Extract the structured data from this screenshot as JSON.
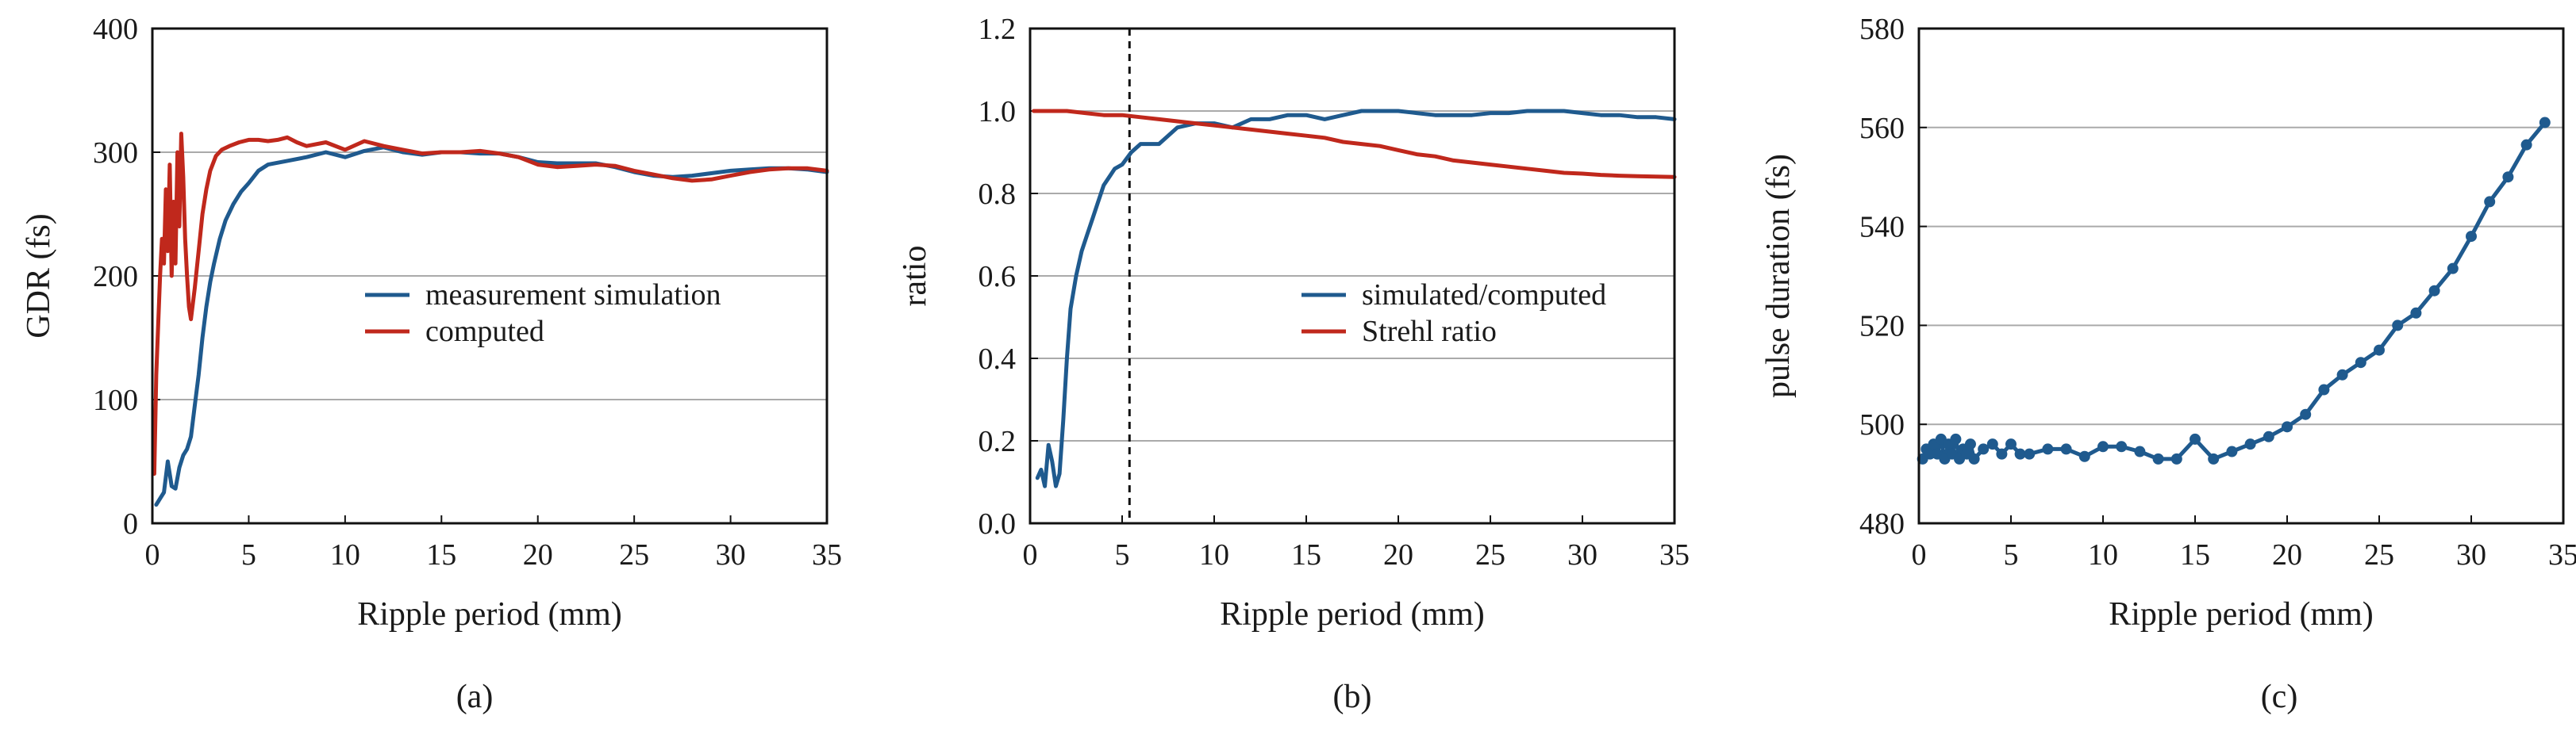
{
  "colors": {
    "blue": "#1f5a8e",
    "red": "#c0281c",
    "grid": "#aaaaaa",
    "axis": "#111111"
  },
  "chart_data": [
    {
      "type": "line",
      "caption": "(a)",
      "xlabel": "Ripple period (mm)",
      "ylabel": "GDR (fs)",
      "xlim": [
        0,
        35
      ],
      "ylim": [
        0,
        400
      ],
      "xticks": [
        0,
        5,
        10,
        15,
        20,
        25,
        30,
        35
      ],
      "yticks": [
        0,
        100,
        200,
        300,
        400
      ],
      "grid": "horizontal",
      "legend_position": "center-right",
      "series": [
        {
          "name": "measurement simulation",
          "color": "#1f5a8e",
          "x": [
            0.2,
            0.4,
            0.6,
            0.8,
            1.0,
            1.2,
            1.4,
            1.6,
            1.8,
            2.0,
            2.2,
            2.4,
            2.6,
            2.8,
            3.0,
            3.2,
            3.5,
            3.8,
            4.2,
            4.6,
            5.0,
            5.5,
            6.0,
            7.0,
            8.0,
            9.0,
            10.0,
            11.0,
            12.0,
            13.0,
            14.0,
            15.0,
            16.0,
            17.0,
            18.0,
            19.0,
            20.0,
            21.0,
            22.0,
            23.0,
            24.0,
            25.0,
            26.0,
            27.0,
            28.0,
            29.0,
            30.0,
            31.0,
            32.0,
            33.0,
            34.0,
            35.0
          ],
          "y": [
            15,
            20,
            25,
            50,
            30,
            28,
            45,
            55,
            60,
            70,
            95,
            120,
            150,
            175,
            195,
            210,
            230,
            245,
            258,
            268,
            275,
            285,
            290,
            293,
            296,
            300,
            296,
            301,
            304,
            300,
            298,
            300,
            300,
            299,
            299,
            296,
            292,
            291,
            291,
            291,
            288,
            284,
            281,
            280,
            281,
            283,
            285,
            286,
            287,
            287,
            286,
            284
          ]
        },
        {
          "name": "computed",
          "color": "#c0281c",
          "x": [
            0.1,
            0.2,
            0.3,
            0.4,
            0.5,
            0.6,
            0.7,
            0.8,
            0.9,
            1.0,
            1.1,
            1.2,
            1.3,
            1.4,
            1.5,
            1.6,
            1.7,
            1.8,
            1.9,
            2.0,
            2.2,
            2.4,
            2.6,
            2.8,
            3.0,
            3.3,
            3.6,
            4.0,
            4.5,
            5.0,
            5.5,
            6.0,
            6.5,
            7.0,
            7.5,
            8.0,
            9.0,
            10.0,
            11.0,
            12.0,
            13.0,
            14.0,
            15.0,
            16.0,
            17.0,
            18.0,
            19.0,
            20.0,
            21.0,
            22.0,
            23.0,
            24.0,
            25.0,
            26.0,
            27.0,
            28.0,
            29.0,
            30.0,
            31.0,
            32.0,
            33.0,
            34.0,
            35.0
          ],
          "y": [
            40,
            120,
            160,
            200,
            230,
            210,
            270,
            220,
            290,
            200,
            260,
            210,
            300,
            240,
            315,
            280,
            230,
            200,
            175,
            165,
            190,
            220,
            250,
            270,
            285,
            297,
            302,
            305,
            308,
            310,
            310,
            309,
            310,
            312,
            308,
            305,
            308,
            302,
            309,
            305,
            302,
            299,
            300,
            300,
            301,
            299,
            296,
            290,
            288,
            289,
            290,
            289,
            285,
            282,
            279,
            277,
            278,
            281,
            284,
            286,
            287,
            287,
            285
          ]
        }
      ]
    },
    {
      "type": "line",
      "caption": "(b)",
      "xlabel": "Ripple period (mm)",
      "ylabel": "ratio",
      "xlim": [
        0,
        35
      ],
      "ylim": [
        0,
        1.2
      ],
      "xticks": [
        0,
        5,
        10,
        15,
        20,
        25,
        30,
        35
      ],
      "yticks": [
        0.0,
        0.2,
        0.4,
        0.6,
        0.8,
        1.0,
        1.2
      ],
      "ytick_labels": [
        "0.0",
        "0.2",
        "0.4",
        "0.6",
        "0.8",
        "1.0",
        "1.2"
      ],
      "grid": "horizontal",
      "vline_x": 5.4,
      "legend_position": "center-right",
      "series": [
        {
          "name": "simulated/computed",
          "color": "#1f5a8e",
          "x": [
            0.4,
            0.6,
            0.8,
            1.0,
            1.2,
            1.4,
            1.6,
            1.8,
            2.0,
            2.2,
            2.5,
            2.8,
            3.1,
            3.4,
            3.7,
            4.0,
            4.3,
            4.6,
            5.0,
            5.5,
            6.0,
            7.0,
            8.0,
            9.0,
            10.0,
            11.0,
            12.0,
            13.0,
            14.0,
            15.0,
            16.0,
            17.0,
            18.0,
            19.0,
            20.0,
            21.0,
            22.0,
            23.0,
            24.0,
            25.0,
            26.0,
            27.0,
            28.0,
            29.0,
            30.0,
            31.0,
            32.0,
            33.0,
            34.0,
            35.0
          ],
          "y": [
            0.11,
            0.13,
            0.09,
            0.19,
            0.15,
            0.09,
            0.12,
            0.25,
            0.4,
            0.52,
            0.6,
            0.66,
            0.7,
            0.74,
            0.78,
            0.82,
            0.84,
            0.86,
            0.87,
            0.9,
            0.92,
            0.92,
            0.96,
            0.97,
            0.97,
            0.96,
            0.98,
            0.98,
            0.99,
            0.99,
            0.98,
            0.99,
            1.0,
            1.0,
            1.0,
            0.995,
            0.99,
            0.99,
            0.99,
            0.995,
            0.995,
            1.0,
            1.0,
            1.0,
            0.995,
            0.99,
            0.99,
            0.985,
            0.985,
            0.98
          ]
        },
        {
          "name": "Strehl ratio",
          "color": "#c0281c",
          "x": [
            0.2,
            1.0,
            2.0,
            3.0,
            4.0,
            5.0,
            6.0,
            7.0,
            8.0,
            9.0,
            10.0,
            11.0,
            12.0,
            13.0,
            14.0,
            15.0,
            16.0,
            17.0,
            18.0,
            19.0,
            20.0,
            21.0,
            22.0,
            23.0,
            24.0,
            25.0,
            26.0,
            27.0,
            28.0,
            29.0,
            30.0,
            31.0,
            32.0,
            33.0,
            34.0,
            35.0
          ],
          "y": [
            1.0,
            1.0,
            1.0,
            0.995,
            0.99,
            0.99,
            0.985,
            0.98,
            0.975,
            0.97,
            0.965,
            0.96,
            0.955,
            0.95,
            0.945,
            0.94,
            0.935,
            0.925,
            0.92,
            0.915,
            0.905,
            0.895,
            0.89,
            0.88,
            0.875,
            0.87,
            0.865,
            0.86,
            0.855,
            0.85,
            0.848,
            0.845,
            0.843,
            0.842,
            0.841,
            0.84
          ]
        }
      ]
    },
    {
      "type": "line",
      "caption": "(c)",
      "xlabel": "Ripple period (mm)",
      "ylabel": "pulse duration (fs)",
      "xlim": [
        0,
        35
      ],
      "ylim": [
        480,
        580
      ],
      "xticks": [
        0,
        5,
        10,
        15,
        20,
        25,
        30,
        35
      ],
      "yticks": [
        480,
        500,
        520,
        540,
        560,
        580
      ],
      "grid": "horizontal",
      "markers": true,
      "series": [
        {
          "color": "#1f5a8e",
          "x": [
            0.2,
            0.4,
            0.6,
            0.8,
            1.0,
            1.2,
            1.4,
            1.6,
            1.8,
            2.0,
            2.2,
            2.4,
            2.6,
            2.8,
            3.0,
            3.5,
            4.0,
            4.5,
            5.0,
            5.5,
            6.0,
            7.0,
            8.0,
            9.0,
            10.0,
            11.0,
            12.0,
            13.0,
            14.0,
            15.0,
            16.0,
            17.0,
            18.0,
            19.0,
            20.0,
            21.0,
            22.0,
            23.0,
            24.0,
            25.0,
            26.0,
            27.0,
            28.0,
            29.0,
            30.0,
            31.0,
            32.0,
            33.0,
            34.0
          ],
          "y": [
            493,
            495,
            494,
            496,
            494,
            497,
            493,
            496,
            494,
            497,
            493,
            495,
            494,
            496,
            493,
            495,
            496,
            494,
            496,
            494,
            494,
            495,
            495,
            493.5,
            495.5,
            495.5,
            494.5,
            493,
            493,
            497,
            493,
            494.5,
            496,
            497.5,
            499.5,
            502,
            507,
            510,
            512.5,
            515,
            520,
            522.5,
            527,
            531.5,
            538,
            545,
            550,
            556.5,
            561
          ]
        }
      ]
    }
  ]
}
